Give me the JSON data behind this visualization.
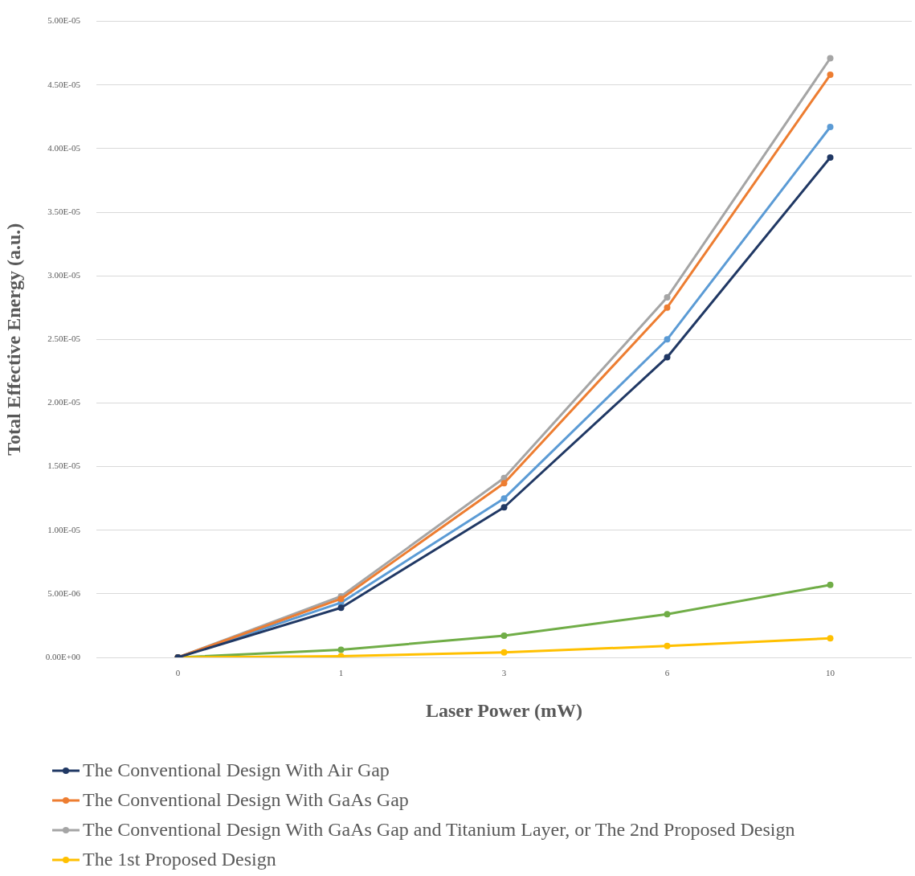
{
  "chart_data": {
    "type": "line",
    "xlabel": "Laser Power (mW)",
    "ylabel": "Total Effective Energy (a.u.)",
    "categories": [
      "0",
      "1",
      "3",
      "6",
      "10"
    ],
    "series": [
      {
        "name": "The Conventional Design With Air Gap",
        "color": "#203864",
        "values": [
          0,
          3.9e-06,
          1.18e-05,
          2.36e-05,
          3.93e-05
        ]
      },
      {
        "name": "The Conventional Design With GaAs Gap",
        "color": "#ed7d31",
        "values": [
          0,
          4.6e-06,
          1.37e-05,
          2.75e-05,
          4.58e-05
        ]
      },
      {
        "name": "The Conventional Design With GaAs Gap and Titanium Layer, or The 2nd Proposed Design",
        "color": "#a5a5a5",
        "values": [
          0,
          4.8e-06,
          1.41e-05,
          2.83e-05,
          4.71e-05
        ]
      },
      {
        "name": "The 1st Proposed Design",
        "color": "#ffc000",
        "values": [
          0,
          1e-07,
          4e-07,
          9e-07,
          1.5e-06
        ]
      },
      {
        "color": "#5b9bd5",
        "values": [
          0,
          4.3e-06,
          1.25e-05,
          2.5e-05,
          4.17e-05
        ]
      },
      {
        "color": "#70ad47",
        "values": [
          0,
          6e-07,
          1.7e-06,
          3.4e-06,
          5.7e-06
        ]
      }
    ],
    "ylim": [
      0,
      5e-05
    ],
    "yticks": [
      {
        "value": 0,
        "label": "0.00E+00"
      },
      {
        "value": 5e-06,
        "label": "5.00E-06"
      },
      {
        "value": 1e-05,
        "label": "1.00E-05"
      },
      {
        "value": 1.5e-05,
        "label": "1.50E-05"
      },
      {
        "value": 2e-05,
        "label": "2.00E-05"
      },
      {
        "value": 2.5e-05,
        "label": "2.50E-05"
      },
      {
        "value": 3e-05,
        "label": "3.00E-05"
      },
      {
        "value": 3.5e-05,
        "label": "3.50E-05"
      },
      {
        "value": 4e-05,
        "label": "4.00E-05"
      },
      {
        "value": 4.5e-05,
        "label": "4.50E-05"
      },
      {
        "value": 5e-05,
        "label": "5.00E-05"
      }
    ],
    "grid": "y",
    "legend": "bottom",
    "marker": "circle",
    "line_style": "solid"
  }
}
